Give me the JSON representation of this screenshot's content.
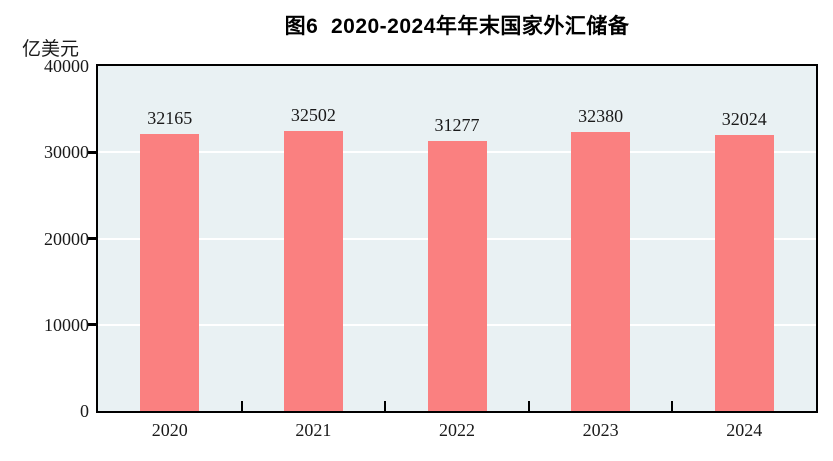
{
  "figure": {
    "title": "图6  2020-2024年年末国家外汇储备",
    "unit_label": "亿美元"
  },
  "chart_data": {
    "type": "bar",
    "title": "图6  2020-2024年年末国家外汇储备",
    "ylabel": "亿美元",
    "categories": [
      "2020",
      "2021",
      "2022",
      "2023",
      "2024"
    ],
    "values": [
      32165,
      32502,
      31277,
      32380,
      32024
    ],
    "value_labels": [
      "32165",
      "32502",
      "31277",
      "32380",
      "32024"
    ],
    "ylim": [
      0,
      40000
    ],
    "yticks": [
      0,
      10000,
      20000,
      30000,
      40000
    ],
    "ytick_labels": [
      "0",
      "10000",
      "20000",
      "30000",
      "40000"
    ],
    "grid": "horizontal-white",
    "legend": "none",
    "colors": {
      "bar": "#fa8080",
      "plot_background": "#e9f1f3",
      "plot_border": "#000000",
      "gridline": "#ffffff",
      "text": "#1a1a1a",
      "title_text": "#000000",
      "page_background": "#ffffff"
    }
  }
}
